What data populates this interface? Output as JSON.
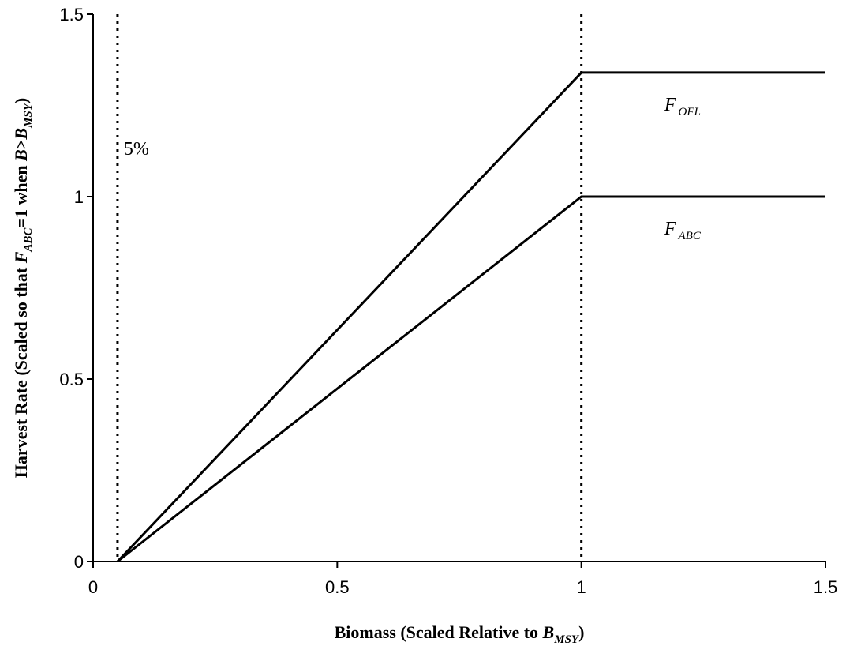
{
  "chart_data": {
    "type": "line",
    "x": [
      0.05,
      1,
      1.5
    ],
    "series": [
      {
        "name": "F",
        "name_sub": "OFL",
        "color": "#000000",
        "values": [
          0,
          1.34,
          1.34
        ]
      },
      {
        "name": "F",
        "name_sub": "ABC",
        "color": "#000000",
        "values": [
          0,
          1,
          1
        ]
      }
    ],
    "vlines": [
      0.05,
      1
    ],
    "annotation": "5%",
    "xlim": [
      0,
      1.5
    ],
    "xticks": [
      0,
      0.5,
      1,
      1.5
    ],
    "ylim": [
      0,
      1.5
    ],
    "yticks": [
      0,
      0.5,
      1,
      1.5
    ],
    "xlabel": [
      {
        "t": "Biomass (Scaled Relative to "
      },
      {
        "t": "B",
        "italic": true
      },
      {
        "t": "MSY",
        "italic": true,
        "sub": true
      },
      {
        "t": ")"
      }
    ],
    "ylabel": [
      {
        "t": "Harvest Rate (Scaled so that "
      },
      {
        "t": "F",
        "italic": true
      },
      {
        "t": "ABC",
        "italic": true,
        "sub": true
      },
      {
        "t": "=1 when "
      },
      {
        "t": "B",
        "italic": true
      },
      {
        "t": ">"
      },
      {
        "t": "B",
        "italic": true
      },
      {
        "t": "MSY",
        "italic": true,
        "sub": true
      },
      {
        "t": ")"
      }
    ]
  }
}
